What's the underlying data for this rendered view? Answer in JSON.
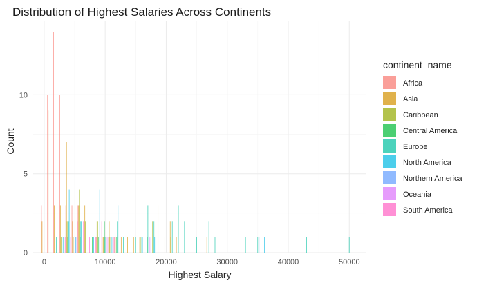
{
  "chart_data": {
    "type": "bar",
    "subtype": "histogram",
    "position": "dodge",
    "title": "Distribution of Highest Salaries Across Continents",
    "xlabel": "Highest Salary",
    "ylabel": "Count",
    "xlim": [
      -1800,
      52800
    ],
    "ylim": [
      0,
      14.7
    ],
    "x_ticks": [
      0,
      10000,
      20000,
      30000,
      40000,
      50000
    ],
    "x_tick_labels": [
      "0",
      "10000",
      "20000",
      "30000",
      "40000",
      "50000"
    ],
    "y_ticks": [
      0,
      5,
      10
    ],
    "y_tick_labels": [
      "0",
      "5",
      "10"
    ],
    "bin_width": 1000,
    "grid": true,
    "legend": {
      "title": "continent_name",
      "position": "right"
    },
    "series": [
      {
        "name": "Africa",
        "color": "#F8766D",
        "bars": [
          [
            0,
            3
          ],
          [
            1000,
            10
          ],
          [
            2000,
            14
          ],
          [
            3000,
            10
          ],
          [
            4000,
            3
          ],
          [
            5000,
            3
          ],
          [
            6000,
            3
          ],
          [
            7000,
            2
          ],
          [
            9000,
            1
          ],
          [
            11000,
            1
          ],
          [
            12000,
            1
          ]
        ]
      },
      {
        "name": "Asia",
        "color": "#D39200",
        "bars": [
          [
            0,
            2
          ],
          [
            1000,
            9
          ],
          [
            2000,
            3
          ],
          [
            3000,
            3
          ],
          [
            4000,
            7
          ],
          [
            5000,
            2
          ],
          [
            6000,
            3
          ],
          [
            7000,
            3
          ],
          [
            8000,
            2
          ],
          [
            9000,
            2
          ],
          [
            10000,
            1
          ],
          [
            11000,
            2
          ],
          [
            12000,
            1
          ],
          [
            13000,
            1
          ],
          [
            14000,
            1
          ],
          [
            15000,
            1
          ],
          [
            16000,
            1
          ],
          [
            19000,
            3
          ],
          [
            21000,
            2
          ],
          [
            22000,
            1
          ],
          [
            27000,
            1
          ]
        ]
      },
      {
        "name": "Caribbean",
        "color": "#93AA00",
        "bars": [
          [
            2000,
            2
          ],
          [
            3000,
            1
          ],
          [
            4000,
            2
          ],
          [
            5000,
            1
          ],
          [
            6000,
            4
          ],
          [
            7000,
            2
          ],
          [
            9000,
            2
          ],
          [
            10000,
            1
          ],
          [
            11000,
            1
          ],
          [
            16000,
            1
          ],
          [
            18000,
            2
          ],
          [
            20000,
            1
          ],
          [
            21000,
            1
          ]
        ]
      },
      {
        "name": "Central America",
        "color": "#00BA38",
        "bars": [
          [
            4000,
            1
          ],
          [
            6000,
            1
          ],
          [
            8000,
            1
          ],
          [
            9000,
            1
          ],
          [
            10000,
            2
          ],
          [
            12000,
            1
          ],
          [
            14000,
            1
          ],
          [
            17000,
            1
          ]
        ]
      },
      {
        "name": "Europe",
        "color": "#00C19F",
        "bars": [
          [
            2000,
            1
          ],
          [
            4000,
            2
          ],
          [
            6000,
            2
          ],
          [
            8000,
            1
          ],
          [
            10000,
            1
          ],
          [
            12000,
            2
          ],
          [
            13000,
            1
          ],
          [
            15000,
            1
          ],
          [
            16000,
            1
          ],
          [
            17000,
            3
          ],
          [
            18000,
            2
          ],
          [
            19000,
            5
          ],
          [
            21000,
            2
          ],
          [
            22000,
            3
          ],
          [
            23000,
            2
          ],
          [
            25000,
            1
          ],
          [
            27000,
            2
          ],
          [
            28000,
            1
          ],
          [
            33000,
            1
          ],
          [
            35000,
            1
          ],
          [
            43000,
            1
          ],
          [
            50000,
            1
          ]
        ]
      },
      {
        "name": "North America",
        "color": "#00B9E3",
        "bars": [
          [
            3000,
            1
          ],
          [
            4000,
            4
          ],
          [
            5000,
            1
          ],
          [
            6000,
            2
          ],
          [
            8000,
            1
          ],
          [
            9000,
            4
          ],
          [
            11000,
            1
          ],
          [
            12000,
            3
          ],
          [
            13000,
            1
          ],
          [
            16000,
            1
          ],
          [
            18000,
            1
          ],
          [
            36000,
            1
          ],
          [
            42000,
            1
          ]
        ]
      },
      {
        "name": "Northern America",
        "color": "#619CFF",
        "bars": [
          [
            5000,
            1
          ],
          [
            35000,
            1
          ]
        ]
      },
      {
        "name": "Oceania",
        "color": "#DB72FB",
        "bars": [
          [
            4000,
            1
          ],
          [
            10000,
            1
          ],
          [
            17000,
            1
          ]
        ]
      },
      {
        "name": "South America",
        "color": "#FF61C3",
        "bars": [
          [
            3000,
            1
          ],
          [
            5000,
            2
          ],
          [
            6000,
            2
          ],
          [
            7000,
            1
          ],
          [
            8000,
            1
          ],
          [
            9000,
            2
          ],
          [
            11000,
            1
          ],
          [
            12000,
            1
          ]
        ]
      }
    ]
  }
}
